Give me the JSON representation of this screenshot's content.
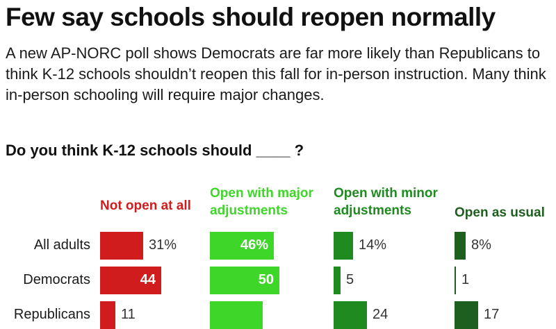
{
  "title": "Few say schools should reopen normally",
  "subtitle": "A new AP-NORC poll shows Democrats are far more likely than Republicans to think K-12 schools shouldn’t reopen this fall for in-person instruction. Many think in-person schooling will require major changes.",
  "question": "Do you think K-12 schools should ____ ?",
  "colors": {
    "not_open": "#d01c1c",
    "major": "#3fd62a",
    "minor": "#1f8a1f",
    "usual": "#1e5e1e"
  },
  "chart_data": {
    "type": "bar",
    "title": "Do you think K-12 schools should ____ ?",
    "categories": [
      "All adults",
      "Democrats",
      "Republicans"
    ],
    "series": [
      {
        "name": "Not open at all",
        "values": [
          31,
          44,
          11
        ],
        "labels": [
          "31%",
          "44",
          "11"
        ]
      },
      {
        "name": "Open with major adjustments",
        "values": [
          46,
          50,
          38
        ],
        "labels": [
          "46%",
          "50",
          ""
        ]
      },
      {
        "name": "Open with minor adjustments",
        "values": [
          14,
          5,
          24
        ],
        "labels": [
          "14%",
          "5",
          "24"
        ]
      },
      {
        "name": "Open as usual",
        "values": [
          8,
          1,
          17
        ],
        "labels": [
          "8%",
          "1",
          "17"
        ]
      }
    ],
    "ylim": [
      0,
      100
    ],
    "legend": "top"
  }
}
